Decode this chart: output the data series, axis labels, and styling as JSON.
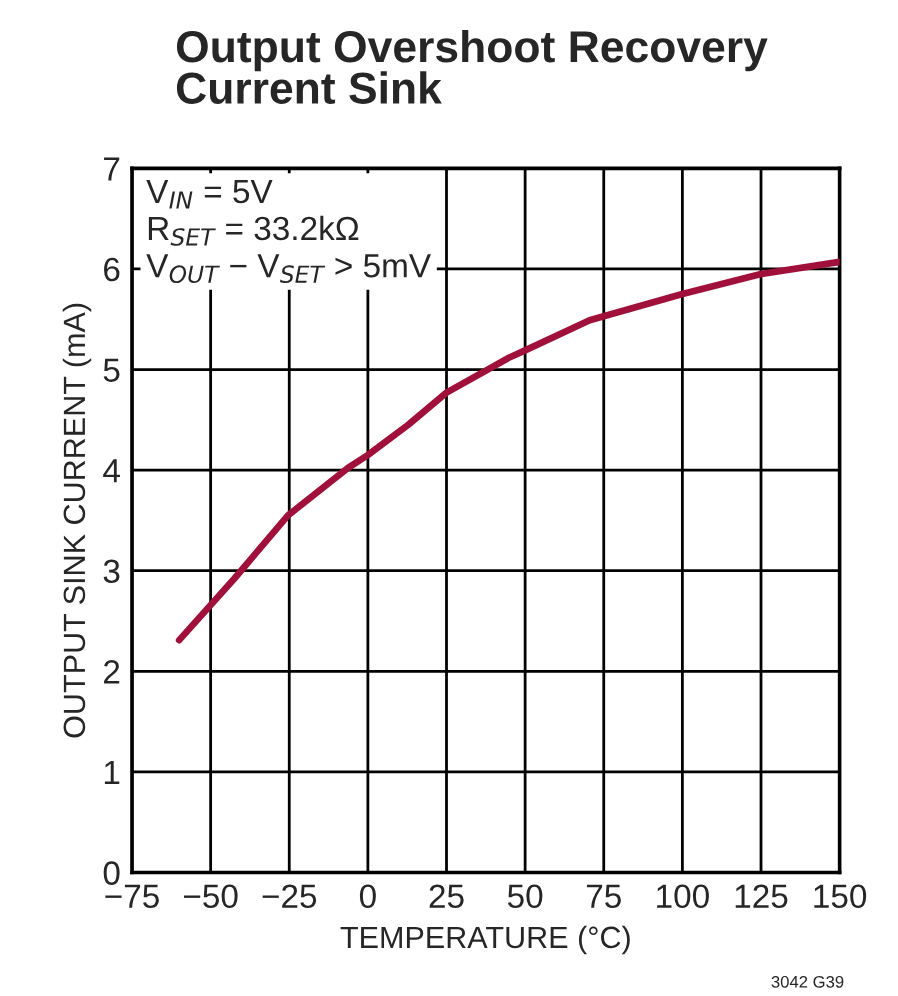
{
  "chart_data": {
    "type": "line",
    "title": "Output Overshoot Recovery\nCurrent Sink",
    "xlabel": "TEMPERATURE (°C)",
    "ylabel": "OUTPUT SINK CURRENT (mA)",
    "annotations": [
      "V$_{IN}$ = 5V\nR$_{SET}$ = 33.2kΩ\nV$_{OUT}$ − V$_{SET}$ > 5mV",
      "3042 G39"
    ],
    "x": [
      -60,
      -42.5,
      -25.4,
      -6.4,
      0,
      12.8,
      25,
      45,
      50,
      70.5,
      75,
      100,
      125,
      150
    ],
    "series": [
      {
        "color": "#a0103a",
        "values": [
          2.31,
          2.92,
          3.55,
          4.02,
          4.15,
          4.45,
          4.77,
          5.12,
          5.19,
          5.49,
          5.53,
          5.75,
          5.95,
          6.07
        ]
      }
    ],
    "xlim": [
      -75,
      150
    ],
    "xticks": [
      {
        "value": -75,
        "label": "−75"
      },
      {
        "value": -50,
        "label": "−50"
      },
      {
        "value": -25,
        "label": "−25"
      },
      0,
      25,
      50,
      75,
      100,
      125,
      150
    ],
    "ylim": [
      0,
      7
    ],
    "yticks": [
      0,
      1,
      2,
      3,
      4,
      5,
      6,
      7
    ],
    "grid": true,
    "legend": false,
    "marker": "none",
    "line_style": "solid"
  }
}
